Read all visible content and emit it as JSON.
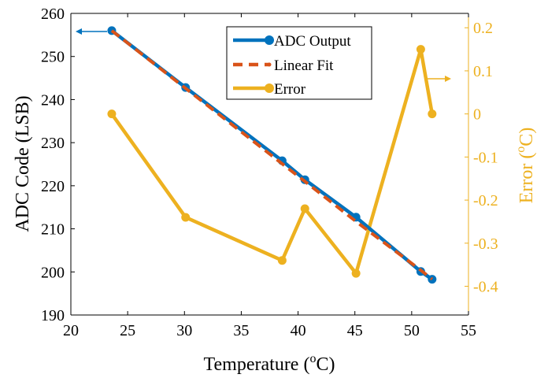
{
  "chart_data": {
    "type": "line",
    "xlabel": {
      "main": "Temperature (",
      "sup": "o",
      "tail": "C)"
    },
    "ylabel_left": "ADC Code (LSB)",
    "ylabel_right": {
      "main": "Error (",
      "sup": "o",
      "tail": "C)"
    },
    "xlim": [
      20,
      55
    ],
    "ylim_left": [
      190,
      260
    ],
    "ylim_right": [
      -0.466667,
      0.233333
    ],
    "x_ticks": [
      "20",
      "25",
      "30",
      "35",
      "40",
      "45",
      "50",
      "55"
    ],
    "y_ticks_left": [
      "190",
      "200",
      "210",
      "220",
      "230",
      "240",
      "250",
      "260"
    ],
    "y_ticks_right": [
      "-0.4",
      "-0.3",
      "-0.2",
      "-0.1",
      "0",
      "0.1",
      "0.2"
    ],
    "legend_position": "top-center",
    "colors": {
      "adc_output": "#0072BD",
      "linear_fit": "#D95319",
      "error": "#EDB120"
    },
    "series": [
      {
        "name": "ADC Output",
        "axis": "left",
        "style": "line-marker",
        "x": [
          23.6,
          30.1,
          38.6,
          40.6,
          45.1,
          50.8,
          51.8
        ],
        "y": [
          256.0,
          242.8,
          225.8,
          221.4,
          212.7,
          200.1,
          198.3
        ]
      },
      {
        "name": "Linear Fit",
        "axis": "left",
        "style": "dashed",
        "x": [
          23.6,
          30.1,
          38.6,
          40.6,
          45.1,
          50.8,
          51.8
        ],
        "y": [
          256.0,
          242.6,
          225.1,
          221.0,
          211.7,
          200.4,
          198.3
        ]
      },
      {
        "name": "Error",
        "axis": "right",
        "style": "line-marker",
        "x": [
          23.6,
          30.1,
          38.6,
          40.6,
          45.1,
          50.8,
          51.8
        ],
        "y": [
          0.0,
          -0.24,
          -0.34,
          -0.22,
          -0.37,
          0.15,
          0.0
        ]
      }
    ],
    "annotations": [
      {
        "type": "arrow",
        "points_to": "left-axis",
        "color": "#0072BD"
      },
      {
        "type": "arrow",
        "points_to": "right-axis",
        "color": "#EDB120"
      }
    ]
  }
}
